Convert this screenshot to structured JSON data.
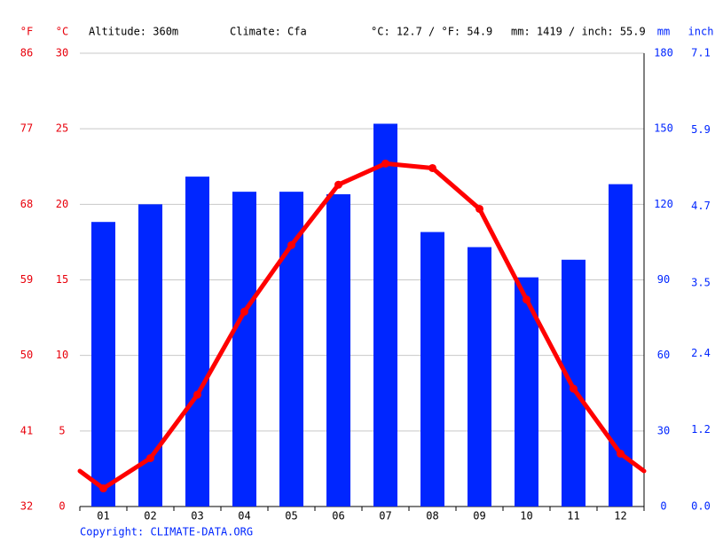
{
  "chart_data": {
    "type": "bar-line",
    "header": [
      "Altitude: 360m",
      "Climate: Cfa",
      "°C: 12.7 / °F: 54.9",
      "mm: 1419 / inch: 55.9"
    ],
    "copyright": "Copyright: CLIMATE-DATA.ORG",
    "categories": [
      "01",
      "02",
      "03",
      "04",
      "05",
      "06",
      "07",
      "08",
      "09",
      "10",
      "11",
      "12"
    ],
    "series": [
      {
        "type": "bar",
        "color": "#0026ff",
        "axis": "y2",
        "values": [
          113,
          120,
          131,
          125,
          125,
          124,
          152,
          109,
          103,
          91,
          98,
          128
        ]
      },
      {
        "type": "line",
        "color": "#ff0000",
        "axis": "y",
        "values": [
          1.2,
          3.2,
          7.4,
          12.9,
          17.3,
          21.3,
          22.7,
          22.4,
          19.7,
          13.7,
          7.8,
          3.5
        ]
      }
    ],
    "ylabel": "°C",
    "ylim": [
      0,
      30
    ],
    "yticks": [
      0,
      5,
      10,
      15,
      20,
      25,
      30
    ],
    "y2label": "mm",
    "y2lim": [
      0,
      180
    ],
    "y2ticks": [
      0,
      30,
      60,
      90,
      120,
      150,
      180
    ],
    "yflabel": "°F",
    "yflim": [
      32,
      86
    ],
    "yfticks": [
      32,
      41,
      50,
      59,
      68,
      77,
      86
    ],
    "yinlabel": "inch",
    "yinlim": [
      0,
      7.1
    ],
    "yinticks": [
      {
        "value": 0,
        "label": "0.0"
      },
      1.2,
      2.4,
      3.5,
      4.7,
      5.9,
      7.1
    ],
    "left_color": "#e8000b",
    "right_color": "#0026ff",
    "grid": true
  }
}
